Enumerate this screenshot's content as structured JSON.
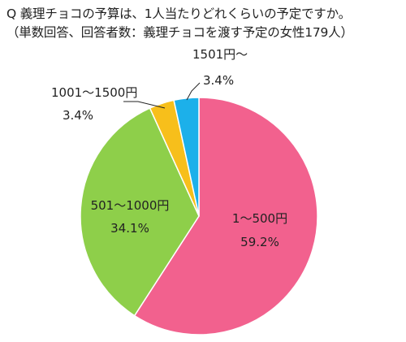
{
  "chart_data": {
    "type": "pie",
    "title": "Q 義理チョコの予算は、1人当たりどれくらいの予定ですか。",
    "subtitle": "（単数回答、回答者数：義理チョコを渡す予定の女性179人）",
    "start": "12 o'clock",
    "direction": "clockwise",
    "slices": [
      {
        "label": "1〜500円",
        "value": 59.2,
        "value_label": "59.2%",
        "color": "#f2618e"
      },
      {
        "label": "501〜1000円",
        "value": 34.1,
        "value_label": "34.1%",
        "color": "#8ecf4a"
      },
      {
        "label": "1001〜1500円",
        "value": 3.4,
        "value_label": "3.4%",
        "color": "#f7bf1b"
      },
      {
        "label": "1501円〜",
        "value": 3.4,
        "value_label": "3.4%",
        "color": "#1cb0ea"
      }
    ],
    "slice_border_color": "#ffffff",
    "leader_line_color": "#222222"
  }
}
